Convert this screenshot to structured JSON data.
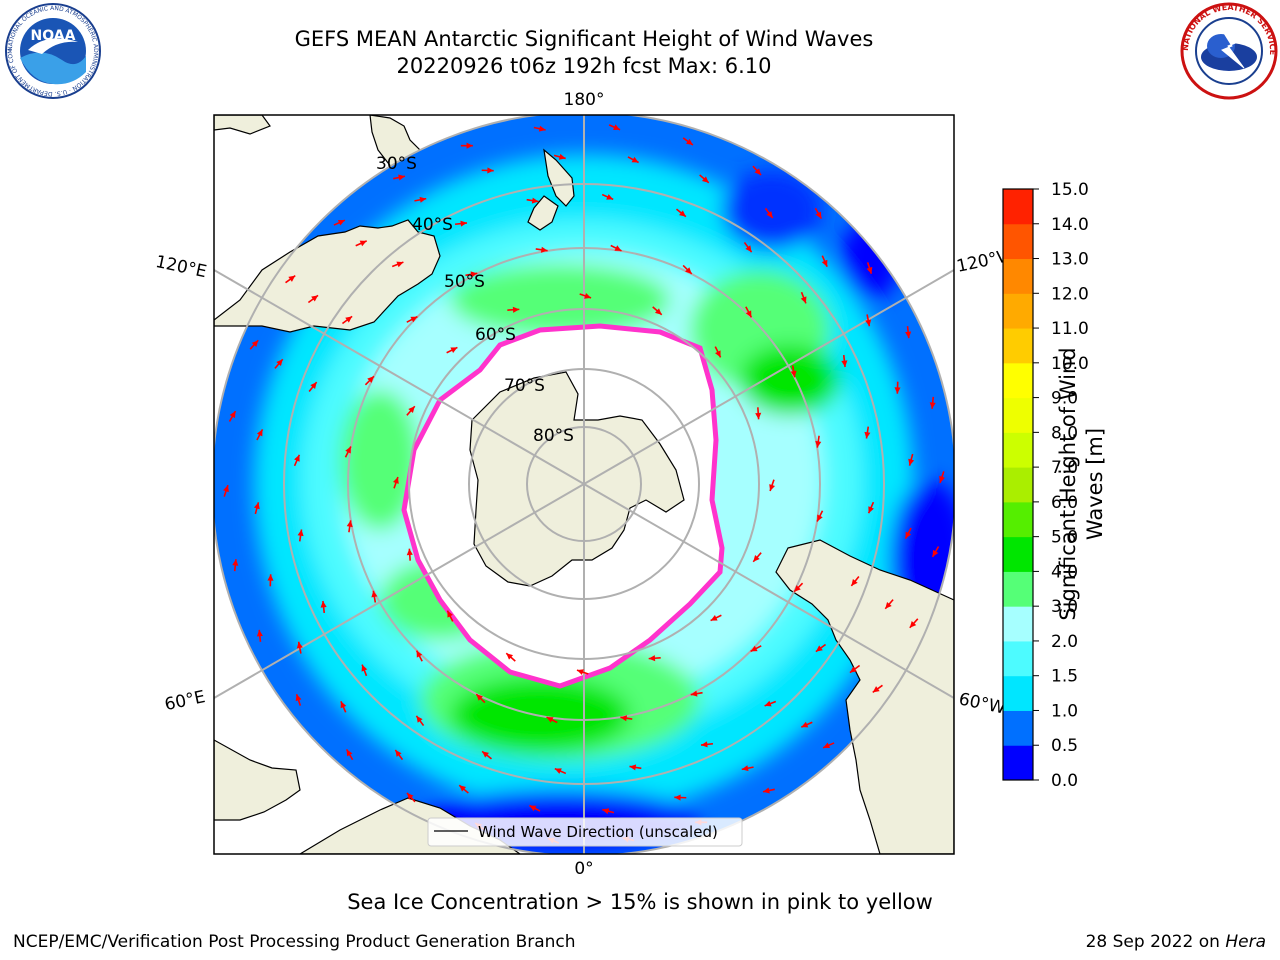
{
  "header": {
    "title_line1": "GEFS MEAN Antarctic Significant Height of Wind Waves",
    "title_line2": "20220926 t06z 192h fcst   Max: 6.10"
  },
  "logos": {
    "left": {
      "name": "noaa-logo",
      "text": "NOAA",
      "ring_text": "NATIONAL OCEANIC AND ATMOSPHERIC ADMINISTRATION · U.S. DEPARTMENT OF COMMERCE"
    },
    "right": {
      "name": "nws-logo",
      "ring_text": "NATIONAL WEATHER SERVICE"
    }
  },
  "map": {
    "projection": "South Polar Stereographic",
    "longitude_labels": {
      "top": "180°",
      "bottom": "0°",
      "upper_left": "120°E",
      "upper_right": "120°W",
      "lower_left": "60°E",
      "lower_right": "60°W"
    },
    "latitude_labels": [
      "30°S",
      "40°S",
      "50°S",
      "60°S",
      "70°S",
      "80°S"
    ],
    "legend_label": "Wind Wave Direction (unscaled)",
    "colors": {
      "land": "#efefdc",
      "ice_edge": "#ff33cc",
      "arrow": "#ff0000",
      "grid": "#b0b0b0"
    }
  },
  "colorbar": {
    "label": "Significant Height of Wind Waves [m]",
    "ticks": [
      "0.0",
      "0.5",
      "1.0",
      "1.5",
      "2.0",
      "3.0",
      "4.0",
      "5.0",
      "6.0",
      "7.0",
      "8.0",
      "9.0",
      "10.0",
      "11.0",
      "12.0",
      "13.0",
      "14.0",
      "15.0"
    ],
    "colors": [
      "#0000ff",
      "#0070ff",
      "#00e6ff",
      "#4dfbff",
      "#a6ffff",
      "#55ff77",
      "#00e600",
      "#55ee00",
      "#aaee00",
      "#ccff00",
      "#eeff00",
      "#ffff00",
      "#ffcc00",
      "#ffaa00",
      "#ff8800",
      "#ff5500",
      "#ff2200"
    ]
  },
  "caption": "Sea Ice Concentration > 15% is shown in pink to yellow",
  "footer": {
    "left": "NCEP/EMC/Verification Post Processing Product Generation Branch",
    "right_date": "28 Sep 2022 on ",
    "right_host": "Hera"
  }
}
